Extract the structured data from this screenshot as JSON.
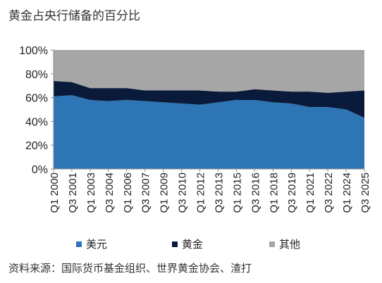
{
  "chart_data": {
    "type": "area",
    "title": "黄金占央行储备的百分比",
    "ylim": [
      0,
      100
    ],
    "y_ticks": [
      "0%",
      "20%",
      "40%",
      "60%",
      "80%",
      "100%"
    ],
    "x_tick_labels": [
      "Q1 2000",
      "Q3 2001",
      "Q1 2003",
      "Q3 2004",
      "Q1 2006",
      "Q3 2007",
      "Q1 2009",
      "Q3 2010",
      "Q1 2012",
      "Q3 2013",
      "Q1 2015",
      "Q3 2016",
      "Q1 2018",
      "Q3 2019",
      "Q1 2021",
      "Q3 2022",
      "Q1 2024",
      "Q3 2025"
    ],
    "x": [
      "Q1 2000",
      "Q3 2001",
      "Q1 2003",
      "Q3 2004",
      "Q1 2006",
      "Q3 2007",
      "Q1 2009",
      "Q3 2010",
      "Q1 2012",
      "Q3 2013",
      "Q1 2015",
      "Q3 2016",
      "Q1 2018",
      "Q3 2019",
      "Q1 2021",
      "Q3 2022",
      "Q1 2024",
      "Q3 2025"
    ],
    "stacked": true,
    "series": [
      {
        "name": "美元",
        "color": "#2e75b6",
        "values": [
          61,
          62,
          58,
          57,
          58,
          57,
          56,
          55,
          54,
          56,
          58,
          58,
          56,
          55,
          52,
          52,
          50,
          43
        ]
      },
      {
        "name": "黄金",
        "color": "#0a1a3a",
        "values": [
          13,
          11,
          10,
          11,
          10,
          9,
          10,
          11,
          12,
          9,
          7,
          9,
          10,
          10,
          13,
          12,
          15,
          23
        ]
      },
      {
        "name": "其他",
        "color": "#a6a6a6",
        "values": [
          26,
          27,
          32,
          32,
          32,
          34,
          34,
          34,
          34,
          35,
          35,
          33,
          34,
          35,
          35,
          36,
          35,
          34
        ]
      }
    ],
    "grid": false,
    "legend_position": "bottom"
  },
  "source": "资料来源：国际货币基金组织、世界黄金协会、渣打"
}
